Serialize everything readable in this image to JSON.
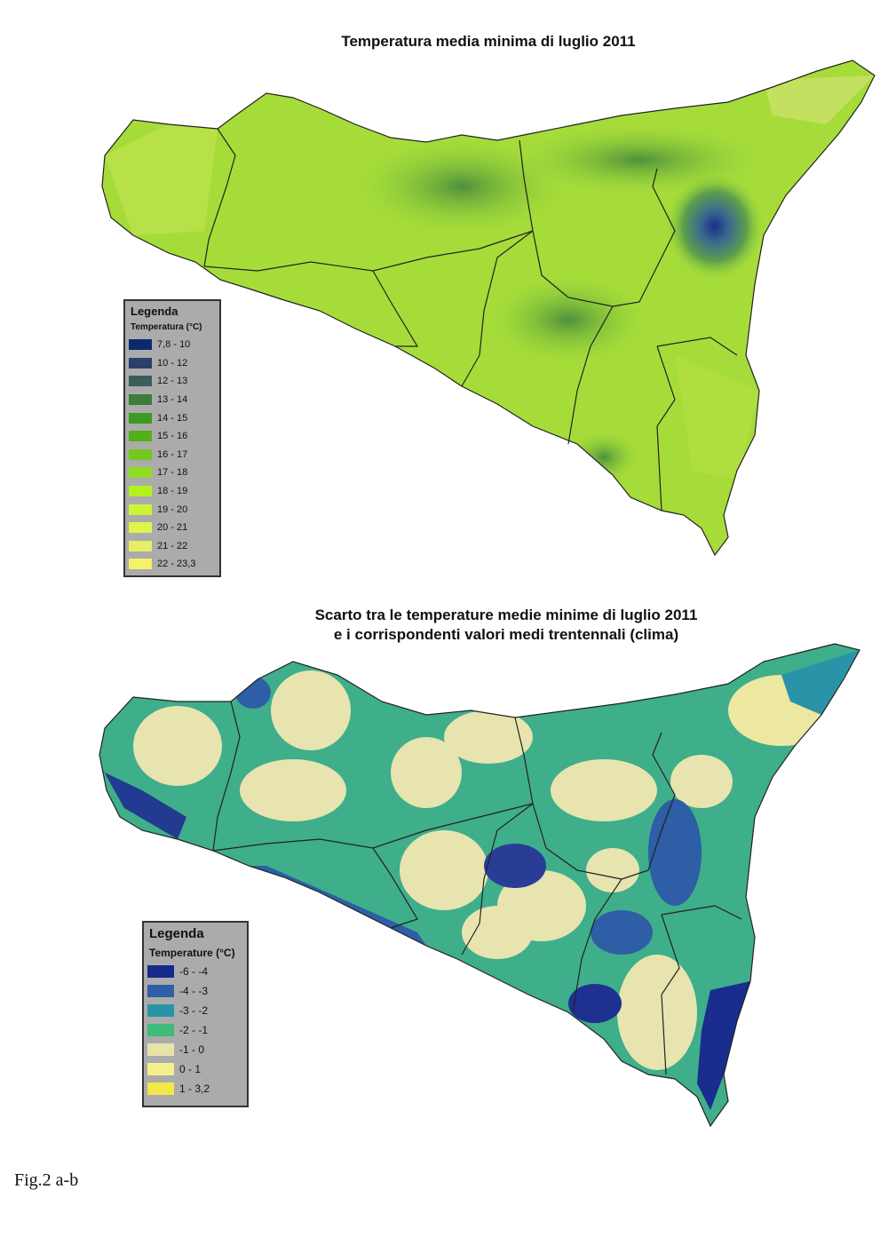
{
  "map_a": {
    "title": "Temperatura media minima di luglio 2011",
    "legend": {
      "title": "Legenda",
      "subtitle": "Temperatura (°C)",
      "classes": [
        {
          "label": "7,8 - 10",
          "color": "#0b2a6e"
        },
        {
          "label": "10 - 12",
          "color": "#2c3f6a"
        },
        {
          "label": "12 - 13",
          "color": "#3a5e5a"
        },
        {
          "label": "13 - 14",
          "color": "#3b7d3a"
        },
        {
          "label": "14 - 15",
          "color": "#3e9a22"
        },
        {
          "label": "15 - 16",
          "color": "#52b118"
        },
        {
          "label": "16 - 17",
          "color": "#72c81c"
        },
        {
          "label": "17 - 18",
          "color": "#8fdd1e"
        },
        {
          "label": "18 - 19",
          "color": "#b3f21c"
        },
        {
          "label": "19 - 20",
          "color": "#ccf535"
        },
        {
          "label": "20 - 21",
          "color": "#def54a"
        },
        {
          "label": "21 - 22",
          "color": "#e6ee66"
        },
        {
          "label": "22 - 23,3",
          "color": "#f7f06b"
        }
      ]
    }
  },
  "map_b": {
    "title_line1": "Scarto tra le temperature medie minime di luglio 2011",
    "title_line2": "e i corrispondenti valori medi trentennali (clima)",
    "legend": {
      "title": "Legenda",
      "subtitle": "Temperature (°C)",
      "classes": [
        {
          "label": "-6 - -4",
          "color": "#152a8a"
        },
        {
          "label": "-4 - -3",
          "color": "#2d5ea6"
        },
        {
          "label": "-3 - -2",
          "color": "#2a93a8"
        },
        {
          "label": "-2 - -1",
          "color": "#3dbd78"
        },
        {
          "label": "-1 - 0",
          "color": "#e7e4a8"
        },
        {
          "label": "0 - 1",
          "color": "#f5f08a"
        },
        {
          "label": "1 - 3,2",
          "color": "#f2e84a"
        }
      ]
    }
  },
  "caption": "Fig.2 a-b"
}
